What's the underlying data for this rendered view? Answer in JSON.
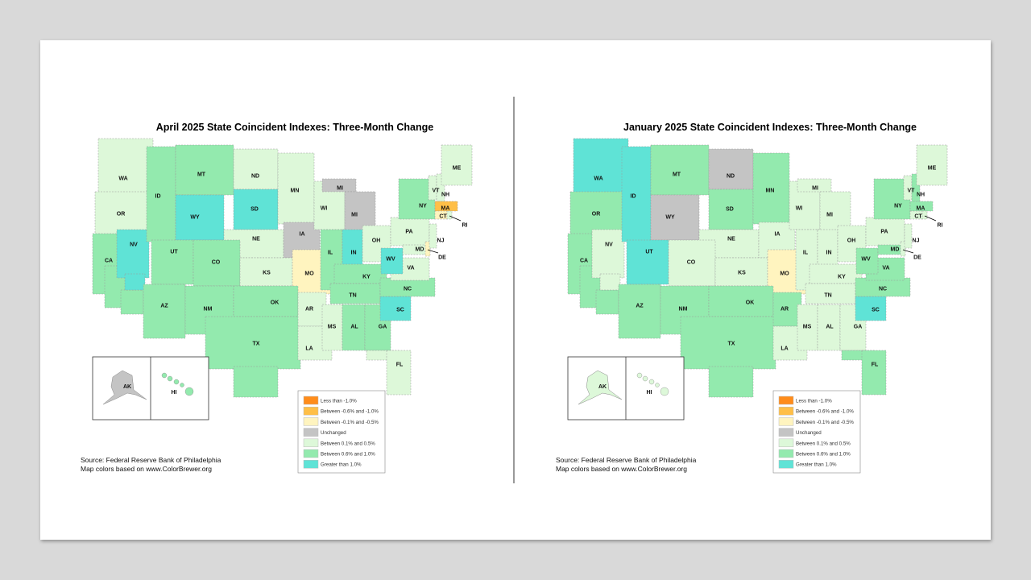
{
  "legend": [
    {
      "label": "Less than -1.0%",
      "color": "#ff8c1a"
    },
    {
      "label": "Between -0.6% and -1.0%",
      "color": "#ffbf47"
    },
    {
      "label": "Between -0.1% and -0.5%",
      "color": "#fff4bf"
    },
    {
      "label": "Unchanged",
      "color": "#c4c4c4"
    },
    {
      "label": "Between 0.1% and 0.5%",
      "color": "#ddf8d9"
    },
    {
      "label": "Between 0.6% and 1.0%",
      "color": "#93eaae"
    },
    {
      "label": "Greater than 1.0%",
      "color": "#5fe3d6"
    }
  ],
  "maps": [
    {
      "title": "April 2025 State Coincident Indexes: Three-Month Change",
      "source": "Source: Federal Reserve Bank of Philadelphia",
      "colors_note": "Map colors based on www.ColorBrewer.org",
      "states": {
        "WA": 4,
        "OR": 4,
        "CA": 5,
        "NV": 6,
        "ID": 5,
        "MT": 5,
        "WY": 6,
        "UT": 5,
        "CO": 5,
        "AZ": 5,
        "NM": 5,
        "ND": 4,
        "SD": 6,
        "NE": 4,
        "KS": 4,
        "OK": 5,
        "TX": 5,
        "MN": 4,
        "IA": 3,
        "MO": 2,
        "AR": 4,
        "LA": 4,
        "WI": 4,
        "IL": 5,
        "MI": 3,
        "IN": 6,
        "OH": 4,
        "KY": 5,
        "TN": 5,
        "MS": 4,
        "AL": 5,
        "GA": 5,
        "FL": 4,
        "SC": 6,
        "NC": 5,
        "VA": 4,
        "WV": 6,
        "MD": 4,
        "DE": 2,
        "PA": 4,
        "NJ": 4,
        "NY": 5,
        "VT": 4,
        "NH": 4,
        "ME": 4,
        "MA": 1,
        "CT": 2,
        "RI": 4,
        "AK": 3,
        "HI": 5
      }
    },
    {
      "title": "January 2025 State Coincident Indexes: Three-Month Change",
      "source": "Source: Federal Reserve Bank of Philadelphia",
      "colors_note": "Map colors based on www.ColorBrewer.org",
      "states": {
        "WA": 6,
        "OR": 5,
        "CA": 5,
        "NV": 4,
        "ID": 6,
        "MT": 5,
        "WY": 3,
        "UT": 6,
        "CO": 4,
        "AZ": 5,
        "NM": 5,
        "ND": 3,
        "SD": 5,
        "NE": 4,
        "KS": 4,
        "OK": 5,
        "TX": 5,
        "MN": 5,
        "IA": 4,
        "MO": 2,
        "AR": 5,
        "LA": 4,
        "WI": 4,
        "IL": 4,
        "MI": 4,
        "IN": 4,
        "OH": 4,
        "KY": 4,
        "TN": 4,
        "MS": 4,
        "AL": 4,
        "GA": 4,
        "FL": 5,
        "SC": 6,
        "NC": 5,
        "VA": 5,
        "WV": 5,
        "MD": 5,
        "DE": 4,
        "PA": 4,
        "NJ": 4,
        "NY": 5,
        "VT": 4,
        "NH": 5,
        "ME": 4,
        "MA": 5,
        "CT": 4,
        "RI": 4,
        "AK": 4,
        "HI": 4
      }
    }
  ]
}
